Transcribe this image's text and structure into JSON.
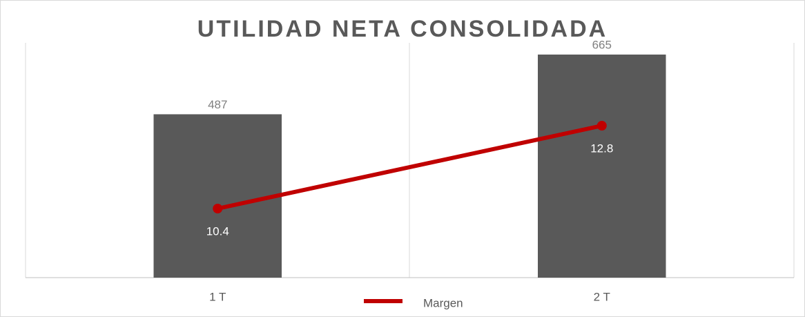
{
  "chart_data": {
    "type": "bar-line",
    "title": "UTILIDAD NETA CONSOLIDADA",
    "categories": [
      "1 T",
      "2 T"
    ],
    "series": [
      {
        "type": "bar",
        "color": "#595959",
        "values": [
          487,
          665
        ]
      },
      {
        "type": "line",
        "name": "Margen",
        "color": "#c00000",
        "axis": "y2",
        "values": [
          10.4,
          12.8
        ]
      }
    ],
    "ylim": [
      0,
      700
    ],
    "y2lim": [
      8.4,
      15.2
    ],
    "legend": "bottom"
  }
}
